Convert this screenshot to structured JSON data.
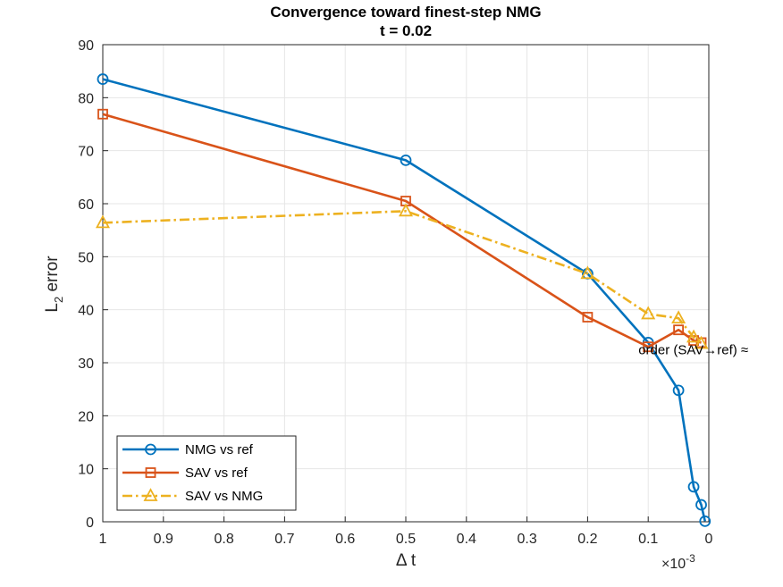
{
  "chart_data": {
    "type": "line",
    "title": "Convergence toward finest-step NMG",
    "subtitle": "t = 0.02",
    "xlabel": "Δ t",
    "ylabel_main": "L",
    "ylabel_sub": "2",
    "ylabel_rest": " error",
    "x_multiplier": "×10",
    "x_exponent": "-3",
    "x_reversed": true,
    "xlim": [
      0,
      1
    ],
    "ylim": [
      0,
      90
    ],
    "xticks": [
      1,
      0.9,
      0.8,
      0.7,
      0.6,
      0.5,
      0.4,
      0.3,
      0.2,
      0.1,
      0
    ],
    "xtick_labels": [
      "1",
      "0.9",
      "0.8",
      "0.7",
      "0.6",
      "0.5",
      "0.4",
      "0.3",
      "0.2",
      "0.1",
      "0"
    ],
    "yticks": [
      0,
      10,
      20,
      30,
      40,
      50,
      60,
      70,
      80,
      90
    ],
    "ytick_labels": [
      "0",
      "10",
      "20",
      "30",
      "40",
      "50",
      "60",
      "70",
      "80",
      "90"
    ],
    "grid": true,
    "legend_position": "bottom-left",
    "series": [
      {
        "name": "NMG vs ref",
        "color": "#0072BD",
        "marker": "circle",
        "line": "solid",
        "x": [
          1,
          0.5,
          0.2,
          0.1,
          0.05,
          0.025,
          0.0125,
          0.00625
        ],
        "y": [
          83.5,
          68.2,
          46.8,
          33.8,
          24.8,
          6.6,
          3.2,
          0.1
        ]
      },
      {
        "name": "SAV vs ref",
        "color": "#D95319",
        "marker": "square",
        "line": "solid",
        "x": [
          1,
          0.5,
          0.2,
          0.1,
          0.05,
          0.025,
          0.0125
        ],
        "y": [
          76.9,
          60.5,
          38.6,
          33.0,
          36.2,
          34.2,
          33.8
        ]
      },
      {
        "name": "SAV vs NMG",
        "color": "#EDB120",
        "marker": "triangle",
        "line": "dashdot",
        "x": [
          1,
          0.5,
          0.2,
          0.1,
          0.05,
          0.025,
          0.0125
        ],
        "y": [
          56.4,
          58.6,
          46.8,
          39.2,
          38.4,
          34.8,
          33.6
        ]
      }
    ],
    "annotation": {
      "text": "order (SAV→ref) ≈",
      "x": 0.1,
      "y": 32.6
    }
  }
}
